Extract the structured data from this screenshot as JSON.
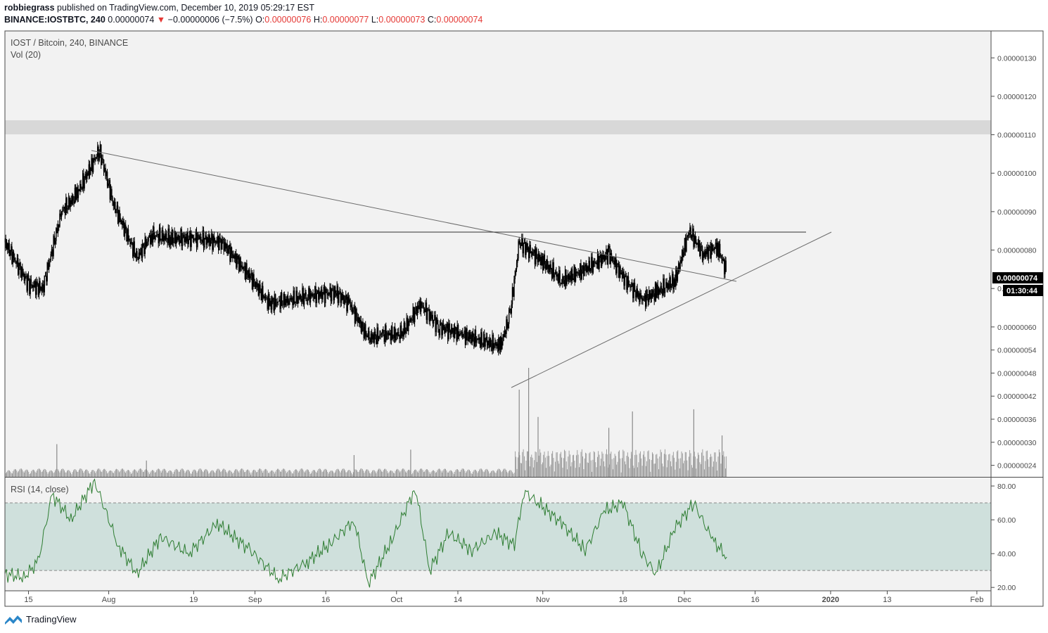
{
  "header": {
    "author": "robbiegrass",
    "published_text": "published on TradingView.com, December 10, 2019 05:29:17 EST",
    "symbol": "BINANCE:IOSTBTC, 240",
    "last_price": "0.00000074",
    "down_arrow": "▼",
    "change": "−0.00000006 (−7.5%)",
    "o_label": "O:",
    "o_value": "0.00000076",
    "h_label": "H:",
    "h_value": "0.00000077",
    "l_label": "L:",
    "l_value": "0.00000073",
    "c_label": "C:",
    "c_value": "0.00000074"
  },
  "chart_data": [
    {
      "type": "candlestick",
      "title": "IOST / Bitcoin, 240, BINANCE",
      "subtitle": "Vol (20)",
      "ylim": [
        2.1e-07,
        1.37e-06
      ],
      "y_ticks": [
        {
          "label": "0.00000130",
          "value": 1.3e-06
        },
        {
          "label": "0.00000120",
          "value": 1.2e-06
        },
        {
          "label": "0.00000110",
          "value": 1.1e-06
        },
        {
          "label": "0.00000100",
          "value": 1e-06
        },
        {
          "label": "0.00000090",
          "value": 9e-07
        },
        {
          "label": "0.00000080",
          "value": 8e-07
        },
        {
          "label": "0.0",
          "value": 7e-07
        },
        {
          "label": "0.00000060",
          "value": 6e-07
        },
        {
          "label": "0.00000054",
          "value": 5.4e-07
        },
        {
          "label": "0.00000048",
          "value": 4.8e-07
        },
        {
          "label": "0.00000042",
          "value": 4.2e-07
        },
        {
          "label": "0.00000036",
          "value": 3.6e-07
        },
        {
          "label": "0.00000030",
          "value": 3e-07
        },
        {
          "label": "0.00000024",
          "value": 2.4e-07
        }
      ],
      "x_ticks": [
        "15",
        "Aug",
        "19",
        "Sep",
        "16",
        "Oct",
        "14",
        "Nov",
        "18",
        "Dec",
        "16",
        "2020",
        "13",
        "Feb"
      ],
      "price_label": "0.00000074",
      "countdown_label": "01:30:44",
      "close_series": {
        "x": [
          "2019-07-10",
          "2019-07-15",
          "2019-07-18",
          "2019-07-22",
          "2019-07-25",
          "2019-07-30",
          "2019-08-02",
          "2019-08-07",
          "2019-08-10",
          "2019-08-14",
          "2019-08-20",
          "2019-08-25",
          "2019-08-31",
          "2019-09-04",
          "2019-09-08",
          "2019-09-12",
          "2019-09-18",
          "2019-09-21",
          "2019-09-25",
          "2019-09-28",
          "2019-10-02",
          "2019-10-06",
          "2019-10-10",
          "2019-10-15",
          "2019-10-20",
          "2019-10-23",
          "2019-10-25",
          "2019-10-27",
          "2019-10-29",
          "2019-11-01",
          "2019-11-05",
          "2019-11-10",
          "2019-11-15",
          "2019-11-18",
          "2019-11-22",
          "2019-11-25",
          "2019-11-29",
          "2019-12-02",
          "2019-12-05",
          "2019-12-08",
          "2019-12-10"
        ],
        "close": [
          8.2e-07,
          7.1e-07,
          7e-07,
          9e-07,
          9.4e-07,
          1.06e-06,
          9.2e-07,
          7.8e-07,
          8.4e-07,
          8.3e-07,
          8.3e-07,
          8.2e-07,
          7.3e-07,
          6.6e-07,
          6.7e-07,
          6.8e-07,
          6.9e-07,
          6.6e-07,
          5.7e-07,
          5.8e-07,
          5.8e-07,
          6.6e-07,
          6e-07,
          5.8e-07,
          5.6e-07,
          5.5e-07,
          6.3e-07,
          8.2e-07,
          8e-07,
          7.7e-07,
          7.2e-07,
          7.5e-07,
          7.9e-07,
          7.3e-07,
          6.7e-07,
          6.9e-07,
          7.2e-07,
          8.5e-07,
          7.9e-07,
          8.1e-07,
          7.4e-07
        ]
      },
      "volume_spikes": [
        {
          "x": "2019-07-21",
          "value": 0.3
        },
        {
          "x": "2019-08-09",
          "value": 0.15
        },
        {
          "x": "2019-09-22",
          "value": 0.2
        },
        {
          "x": "2019-10-04",
          "value": 0.25
        },
        {
          "x": "2019-10-27",
          "value": 0.8
        },
        {
          "x": "2019-10-29",
          "value": 1.0
        },
        {
          "x": "2019-10-31",
          "value": 0.55
        },
        {
          "x": "2019-11-15",
          "value": 0.45
        },
        {
          "x": "2019-11-20",
          "value": 0.6
        },
        {
          "x": "2019-12-03",
          "value": 0.62
        },
        {
          "x": "2019-12-09",
          "value": 0.38
        }
      ],
      "annotations": [
        "descending trendline",
        "horizontal resistance 0.00000086",
        "ascending trendline",
        "grey resistance zone 0.00000112–0.00000116"
      ]
    },
    {
      "type": "line",
      "title": "RSI (14, close)",
      "ylim": [
        18,
        85
      ],
      "y_ticks": [
        "80.00",
        "60.00",
        "40.00",
        "20.00"
      ],
      "band": [
        30,
        70
      ],
      "rsi": {
        "x": [
          "2019-07-10",
          "2019-07-14",
          "2019-07-17",
          "2019-07-20",
          "2019-07-24",
          "2019-07-29",
          "2019-08-03",
          "2019-08-07",
          "2019-08-12",
          "2019-08-18",
          "2019-08-24",
          "2019-08-31",
          "2019-09-06",
          "2019-09-12",
          "2019-09-17",
          "2019-09-22",
          "2019-09-25",
          "2019-09-30",
          "2019-10-05",
          "2019-10-08",
          "2019-10-12",
          "2019-10-17",
          "2019-10-22",
          "2019-10-26",
          "2019-10-28",
          "2019-10-31",
          "2019-11-05",
          "2019-11-10",
          "2019-11-14",
          "2019-11-18",
          "2019-11-22",
          "2019-11-25",
          "2019-11-29",
          "2019-12-03",
          "2019-12-07",
          "2019-12-10"
        ],
        "values": [
          28,
          26,
          35,
          75,
          60,
          83,
          45,
          28,
          50,
          40,
          58,
          42,
          25,
          35,
          46,
          60,
          22,
          48,
          79,
          30,
          52,
          42,
          52,
          45,
          77,
          70,
          58,
          42,
          65,
          70,
          40,
          28,
          55,
          70,
          48,
          38
        ]
      }
    }
  ],
  "footer": {
    "brand": "TradingView"
  },
  "colors": {
    "candles": "#000000",
    "rsi_line": "#2e7d32",
    "rsi_band": "#cfe0dc",
    "zone": "#d8d8d8",
    "price_tag": "#000000"
  }
}
